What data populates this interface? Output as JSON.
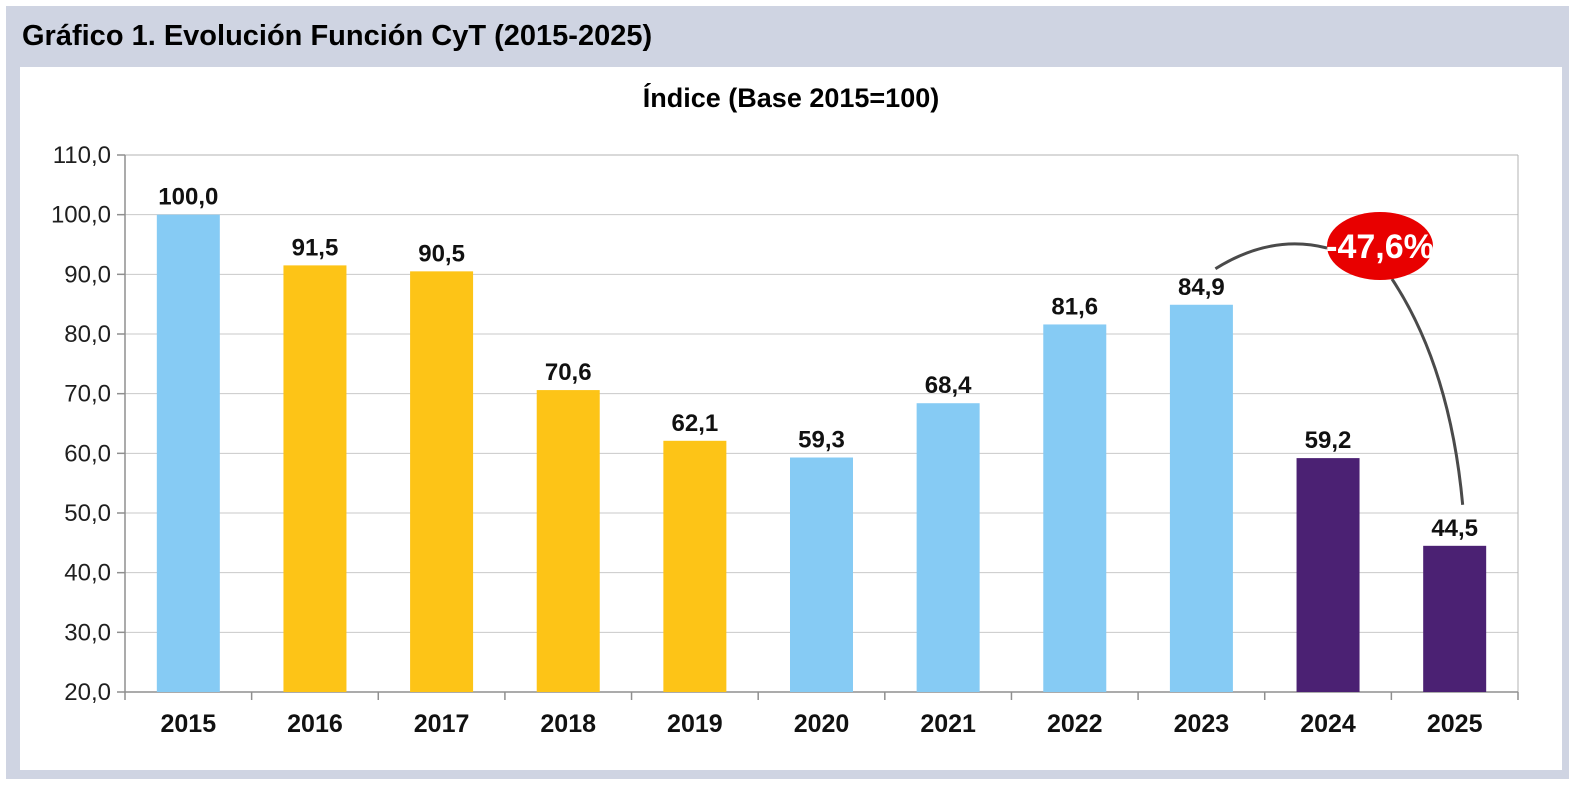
{
  "header": {
    "title": "Gráfico 1. Evolución Función CyT (2015-2025)"
  },
  "colors": {
    "frame_bg": "#cfd4e2",
    "panel_bg": "#ffffff",
    "grid": "#c9c9c9",
    "axis": "#8f8f8f",
    "plot_border": "#b3b3b3",
    "bar_blue": "#86cbf4",
    "bar_yellow": "#fdc417",
    "bar_purple": "#4b2173",
    "connector": "#4a4a4a",
    "annotation_bg": "#e80000",
    "annotation_text": "#ffffff"
  },
  "chart_data": {
    "type": "bar",
    "title": "Índice (Base 2015=100)",
    "xlabel": "",
    "ylabel": "",
    "categories": [
      "2015",
      "2016",
      "2017",
      "2018",
      "2019",
      "2020",
      "2021",
      "2022",
      "2023",
      "2024",
      "2025"
    ],
    "values": [
      100.0,
      91.5,
      90.5,
      70.6,
      62.1,
      59.3,
      68.4,
      81.6,
      84.9,
      59.2,
      44.5
    ],
    "value_labels": [
      "100,0",
      "91,5",
      "90,5",
      "70,6",
      "62,1",
      "59,3",
      "68,4",
      "81,6",
      "84,9",
      "59,2",
      "44,5"
    ],
    "bar_color_keys": [
      "bar_blue",
      "bar_yellow",
      "bar_yellow",
      "bar_yellow",
      "bar_yellow",
      "bar_blue",
      "bar_blue",
      "bar_blue",
      "bar_blue",
      "bar_purple",
      "bar_purple"
    ],
    "ylim": [
      20,
      110
    ],
    "ytick_step": 10,
    "ytick_labels": [
      "20,0",
      "30,0",
      "40,0",
      "50,0",
      "60,0",
      "70,0",
      "80,0",
      "90,0",
      "100,0",
      "110,0"
    ],
    "grid": true,
    "legend": "none",
    "annotation": {
      "text": "-47,6%",
      "from_category": "2023",
      "to_category": "2025"
    }
  }
}
